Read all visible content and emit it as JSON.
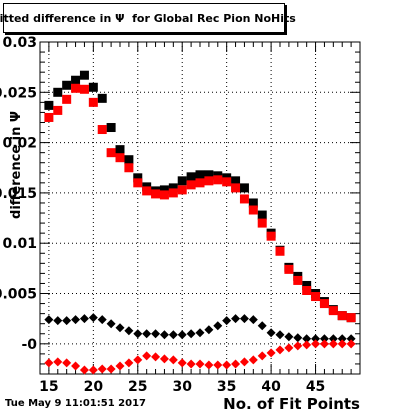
{
  "chart_data": {
    "type": "scatter",
    "title": "Fitted difference in Ψ  for Global Rec Pion NoHits",
    "xlabel": "No. of Fit Points",
    "ylabel": "difference in  Ψ",
    "xlim": [
      14,
      50
    ],
    "ylim": [
      -0.003,
      0.03
    ],
    "x_ticks": [
      15,
      20,
      25,
      30,
      35,
      40,
      45
    ],
    "y_ticks": [
      "-0",
      "0.005",
      "0.01",
      "0.015",
      "0.02",
      "0.025",
      "0.03"
    ],
    "y_tick_values": [
      0,
      0.005,
      0.01,
      0.015,
      0.02,
      0.025,
      0.03
    ],
    "series": [
      {
        "color": "#000000",
        "marker": "square",
        "x": [
          15,
          16,
          17,
          18,
          19,
          20,
          21,
          22,
          23,
          24,
          25,
          26,
          27,
          28,
          29,
          30,
          31,
          32,
          33,
          34,
          35,
          36,
          37,
          38,
          39,
          40,
          41,
          42,
          43,
          44,
          45,
          46,
          47,
          48,
          49
        ],
        "values": [
          0.0237,
          0.025,
          0.0257,
          0.0262,
          0.0267,
          0.0255,
          0.0244,
          0.0215,
          0.0193,
          0.0183,
          0.0165,
          0.0156,
          0.0152,
          0.0153,
          0.0155,
          0.0162,
          0.0166,
          0.0168,
          0.0168,
          0.0167,
          0.0165,
          0.0162,
          0.0155,
          0.014,
          0.0128,
          0.011,
          0.0093,
          0.0076,
          0.0067,
          0.0058,
          0.005,
          0.0042,
          0.0034,
          0.0028,
          0.0026
        ]
      },
      {
        "color": "#ff0000",
        "marker": "square",
        "x": [
          15,
          16,
          17,
          18,
          19,
          20,
          21,
          22,
          23,
          24,
          25,
          26,
          27,
          28,
          29,
          30,
          31,
          32,
          33,
          34,
          35,
          36,
          37,
          38,
          39,
          40,
          41,
          42,
          43,
          44,
          45,
          46,
          47,
          48,
          49
        ],
        "values": [
          0.0225,
          0.0232,
          0.0243,
          0.0254,
          0.0253,
          0.024,
          0.0213,
          0.019,
          0.0185,
          0.0175,
          0.016,
          0.0152,
          0.0149,
          0.0148,
          0.015,
          0.0153,
          0.0158,
          0.016,
          0.0162,
          0.0163,
          0.0161,
          0.0155,
          0.0144,
          0.0133,
          0.012,
          0.0107,
          0.0092,
          0.0074,
          0.0063,
          0.0053,
          0.0047,
          0.004,
          0.0033,
          0.0028,
          0.0026
        ]
      },
      {
        "color": "#000000",
        "marker": "diamond",
        "x": [
          15,
          16,
          17,
          18,
          19,
          20,
          21,
          22,
          23,
          24,
          25,
          26,
          27,
          28,
          29,
          30,
          31,
          32,
          33,
          34,
          35,
          36,
          37,
          38,
          39,
          40,
          41,
          42,
          43,
          44,
          45,
          46,
          47,
          48,
          49
        ],
        "values": [
          0.0024,
          0.0023,
          0.0023,
          0.0024,
          0.0025,
          0.0026,
          0.0024,
          0.002,
          0.0016,
          0.0013,
          0.001,
          0.001,
          0.001,
          0.0009,
          0.0009,
          0.0009,
          0.001,
          0.0011,
          0.0014,
          0.0018,
          0.0023,
          0.0025,
          0.0025,
          0.0024,
          0.0018,
          0.0011,
          0.0009,
          0.0007,
          0.0006,
          0.0005,
          0.0005,
          0.0005,
          0.0005,
          0.0005,
          0.0005
        ]
      },
      {
        "color": "#ff0000",
        "marker": "diamond",
        "x": [
          15,
          16,
          17,
          18,
          19,
          20,
          21,
          22,
          23,
          24,
          25,
          26,
          27,
          28,
          29,
          30,
          31,
          32,
          33,
          34,
          35,
          36,
          37,
          38,
          39,
          40,
          41,
          42,
          43,
          44,
          45,
          46,
          47,
          48,
          49
        ],
        "values": [
          -0.0019,
          -0.0018,
          -0.0019,
          -0.0022,
          -0.0026,
          -0.0026,
          -0.0025,
          -0.0025,
          -0.0022,
          -0.0019,
          -0.0016,
          -0.0012,
          -0.0013,
          -0.0015,
          -0.0016,
          -0.0019,
          -0.002,
          -0.002,
          -0.0021,
          -0.0021,
          -0.0021,
          -0.002,
          -0.0018,
          -0.0016,
          -0.0012,
          -0.0009,
          -0.0006,
          -0.0004,
          -0.0002,
          -0.0001,
          0.0,
          0.0,
          0.0,
          0.0,
          0.0
        ]
      }
    ]
  },
  "footer": {
    "timestamp": "Tue May  9 11:01:51 2017"
  }
}
